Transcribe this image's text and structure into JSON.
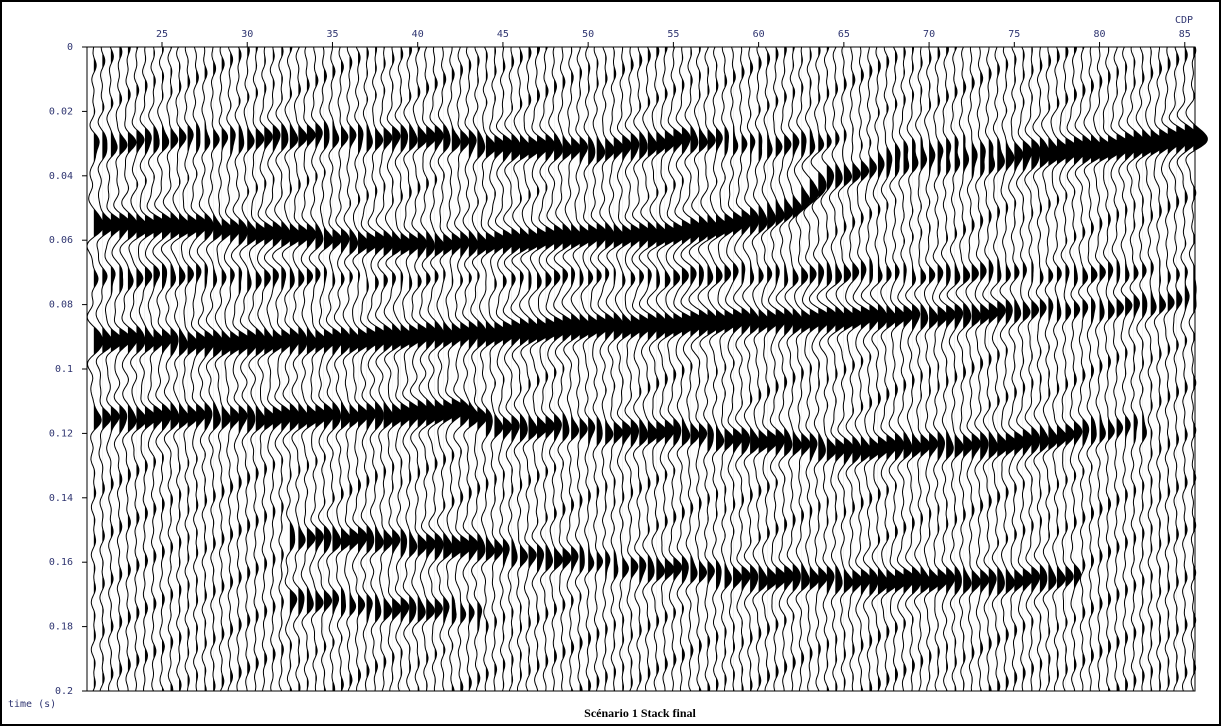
{
  "chart_data": {
    "type": "seismic-wiggle",
    "title": "Scénario 1 Stack final",
    "x_label": "CDP",
    "y_label": "time (s)",
    "xlim": [
      20.6,
      85.6
    ],
    "xticks": [
      25,
      30,
      35,
      40,
      45,
      50,
      55,
      60,
      65,
      70,
      75,
      80,
      85
    ],
    "ylim": [
      0,
      0.2
    ],
    "yticks": [
      0,
      0.02,
      0.04,
      0.06,
      0.08,
      0.1,
      0.12,
      0.14,
      0.16,
      0.18,
      0.2
    ],
    "trace_spacing": 0.5,
    "color": "#000000",
    "events": [
      {
        "cdp": [
          21,
          30,
          40,
          45,
          50,
          55,
          60,
          70,
          80,
          85
        ],
        "time": [
          0.03,
          0.028,
          0.028,
          0.031,
          0.032,
          0.029,
          0.03,
          0.031,
          0.031,
          0.027
        ],
        "amplitude": [
          0.6,
          0.7,
          0.8,
          1.1,
          1.0,
          0.9,
          0.5,
          0.5,
          1.0,
          0.9
        ]
      },
      {
        "cdp": [
          21,
          27,
          35,
          40,
          50,
          55,
          60,
          62,
          64,
          68,
          75,
          80,
          85
        ],
        "time": [
          0.055,
          0.056,
          0.06,
          0.062,
          0.059,
          0.058,
          0.054,
          0.05,
          0.04,
          0.037,
          0.036,
          0.033,
          0.029
        ],
        "amplitude": [
          1.3,
          1.2,
          1.1,
          1.3,
          1.4,
          1.3,
          1.1,
          0.9,
          0.9,
          0.7,
          0.7,
          0.8,
          0.8
        ]
      },
      {
        "cdp": [
          21,
          85
        ],
        "time": [
          0.071,
          0.071
        ],
        "amplitude": [
          0.5,
          0.6
        ]
      },
      {
        "cdp": [
          21,
          30,
          40,
          50,
          60,
          67,
          75,
          85
        ],
        "time": [
          0.091,
          0.092,
          0.09,
          0.087,
          0.085,
          0.084,
          0.082,
          0.079
        ],
        "amplitude": [
          1.0,
          1.2,
          1.3,
          1.4,
          1.3,
          1.2,
          0.8,
          0.7
        ]
      },
      {
        "cdp": [
          21,
          35,
          42,
          45,
          55,
          65,
          75,
          82
        ],
        "time": [
          0.115,
          0.115,
          0.113,
          0.118,
          0.12,
          0.125,
          0.123,
          0.118
        ],
        "amplitude": [
          0.9,
          1.1,
          1.3,
          0.8,
          0.9,
          1.0,
          1.0,
          0.6
        ]
      },
      {
        "cdp": [
          33,
          42,
          50,
          60,
          70,
          78
        ],
        "time": [
          0.152,
          0.155,
          0.16,
          0.165,
          0.166,
          0.165
        ],
        "amplitude": [
          0.8,
          1.0,
          0.6,
          0.9,
          1.1,
          0.7
        ]
      },
      {
        "cdp": [
          33,
          38,
          43
        ],
        "time": [
          0.172,
          0.174,
          0.176
        ],
        "amplitude": [
          0.6,
          0.8,
          0.6
        ]
      }
    ]
  }
}
